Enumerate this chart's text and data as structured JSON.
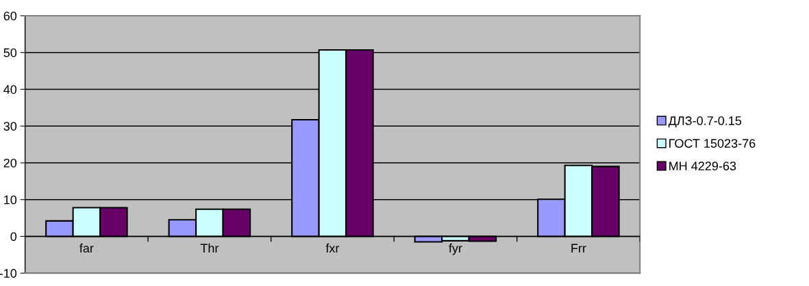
{
  "chart_data": {
    "type": "bar",
    "categories": [
      "far",
      "Thr",
      "fxr",
      "fyr",
      "Frr"
    ],
    "series": [
      {
        "name": "ДЛЗ-0.7-0.15",
        "color": "#9999ff",
        "values": [
          4.2,
          4.5,
          31.7,
          -1.5,
          10.1
        ]
      },
      {
        "name": "ГОСТ 15023-76",
        "color": "#ccffff",
        "values": [
          7.8,
          7.4,
          50.7,
          -1.2,
          19.3
        ]
      },
      {
        "name": "МН 4229-63",
        "color": "#660066",
        "values": [
          7.8,
          7.4,
          50.7,
          -1.3,
          19.0
        ]
      }
    ],
    "ylim": [
      -10,
      60
    ],
    "yticks": [
      -10,
      0,
      10,
      20,
      30,
      40,
      50,
      60
    ],
    "grid": "y",
    "legend": "right"
  }
}
